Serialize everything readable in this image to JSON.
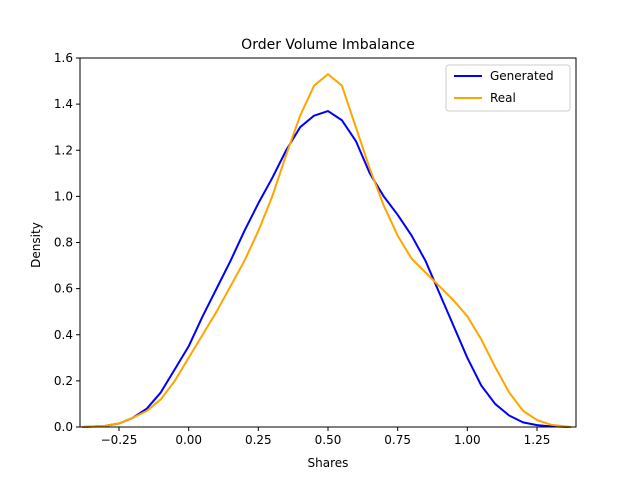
{
  "chart_data": {
    "type": "line",
    "title": "Order Volume Imbalance",
    "xlabel": "Shares",
    "ylabel": "Density",
    "xlim": [
      -0.39,
      1.39
    ],
    "ylim": [
      0.0,
      1.6
    ],
    "xticks": [
      -0.25,
      0.0,
      0.25,
      0.5,
      0.75,
      1.0,
      1.25
    ],
    "xtick_labels": [
      "−0.25",
      "0.00",
      "0.25",
      "0.50",
      "0.75",
      "1.00",
      "1.25"
    ],
    "yticks": [
      0.0,
      0.2,
      0.4,
      0.6,
      0.8,
      1.0,
      1.2,
      1.4,
      1.6
    ],
    "ytick_labels": [
      "0.0",
      "0.2",
      "0.4",
      "0.6",
      "0.8",
      "1.0",
      "1.2",
      "1.4",
      "1.6"
    ],
    "grid": false,
    "legend_position": "top-right",
    "series": [
      {
        "name": "Generated",
        "color": "#0000ff",
        "x": [
          -0.38,
          -0.3,
          -0.25,
          -0.2,
          -0.15,
          -0.1,
          -0.05,
          0.0,
          0.05,
          0.1,
          0.15,
          0.2,
          0.25,
          0.3,
          0.35,
          0.4,
          0.45,
          0.5,
          0.55,
          0.6,
          0.65,
          0.7,
          0.75,
          0.8,
          0.85,
          0.9,
          0.95,
          1.0,
          1.05,
          1.1,
          1.15,
          1.2,
          1.25,
          1.3,
          1.37
        ],
        "y": [
          0.0,
          0.005,
          0.015,
          0.04,
          0.08,
          0.15,
          0.25,
          0.35,
          0.48,
          0.6,
          0.72,
          0.85,
          0.97,
          1.08,
          1.2,
          1.3,
          1.35,
          1.37,
          1.33,
          1.24,
          1.1,
          1.0,
          0.92,
          0.83,
          0.72,
          0.58,
          0.44,
          0.3,
          0.18,
          0.1,
          0.05,
          0.02,
          0.008,
          0.003,
          0.0
        ]
      },
      {
        "name": "Real",
        "color": "#ffa500",
        "x": [
          -0.38,
          -0.3,
          -0.25,
          -0.2,
          -0.15,
          -0.1,
          -0.05,
          0.0,
          0.05,
          0.1,
          0.15,
          0.2,
          0.25,
          0.3,
          0.35,
          0.4,
          0.45,
          0.5,
          0.55,
          0.6,
          0.65,
          0.7,
          0.75,
          0.8,
          0.85,
          0.9,
          0.95,
          1.0,
          1.05,
          1.1,
          1.15,
          1.2,
          1.25,
          1.3,
          1.37
        ],
        "y": [
          0.0,
          0.005,
          0.015,
          0.04,
          0.07,
          0.12,
          0.2,
          0.3,
          0.4,
          0.5,
          0.61,
          0.72,
          0.85,
          1.0,
          1.18,
          1.35,
          1.48,
          1.53,
          1.48,
          1.3,
          1.12,
          0.96,
          0.83,
          0.73,
          0.67,
          0.61,
          0.55,
          0.48,
          0.38,
          0.26,
          0.15,
          0.07,
          0.03,
          0.01,
          0.0
        ]
      }
    ]
  }
}
